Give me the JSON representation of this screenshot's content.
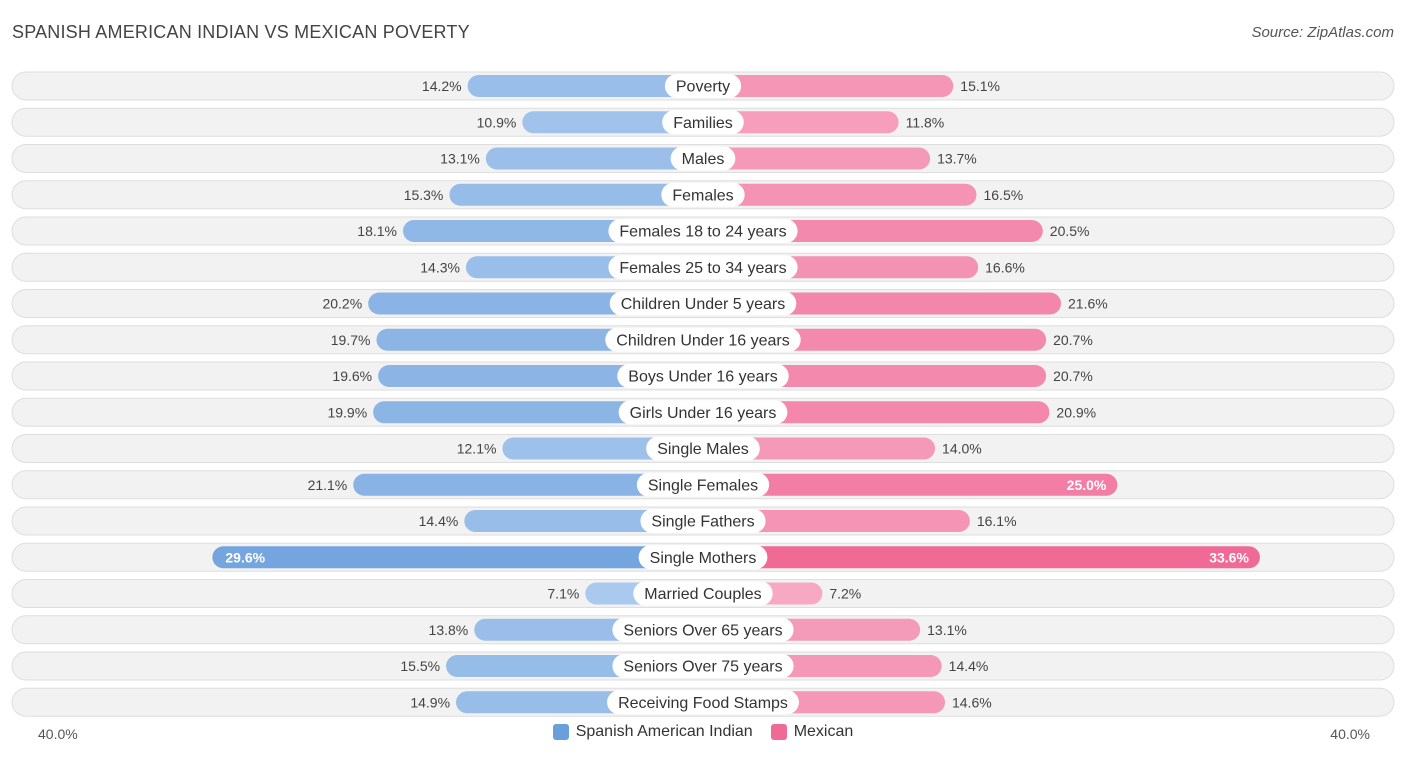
{
  "header": {
    "title": "SPANISH AMERICAN INDIAN VS MEXICAN POVERTY",
    "source": "Source: ZipAtlas.com"
  },
  "colors": {
    "left": "#6a9fdb",
    "left_light": "#aac9ee",
    "right": "#f06a96",
    "right_light": "#f7a9c4"
  },
  "chart_data": {
    "type": "bar",
    "orientation": "horizontal-diverging",
    "xlim": [
      0,
      40
    ],
    "axis_left_label": "40.0%",
    "axis_right_label": "40.0%",
    "legend": [
      {
        "name": "Spanish American Indian",
        "color": "#6a9fdb"
      },
      {
        "name": "Mexican",
        "color": "#f06a96"
      }
    ],
    "categories": [
      "Poverty",
      "Families",
      "Males",
      "Females",
      "Females 18 to 24 years",
      "Females 25 to 34 years",
      "Children Under 5 years",
      "Children Under 16 years",
      "Boys Under 16 years",
      "Girls Under 16 years",
      "Single Males",
      "Single Females",
      "Single Fathers",
      "Single Mothers",
      "Married Couples",
      "Seniors Over 65 years",
      "Seniors Over 75 years",
      "Receiving Food Stamps"
    ],
    "series": [
      {
        "name": "Spanish American Indian",
        "values": [
          14.2,
          10.9,
          13.1,
          15.3,
          18.1,
          14.3,
          20.2,
          19.7,
          19.6,
          19.9,
          12.1,
          21.1,
          14.4,
          29.6,
          7.1,
          13.8,
          15.5,
          14.9
        ],
        "labels": [
          "14.2%",
          "10.9%",
          "13.1%",
          "15.3%",
          "18.1%",
          "14.3%",
          "20.2%",
          "19.7%",
          "19.6%",
          "19.9%",
          "12.1%",
          "21.1%",
          "14.4%",
          "29.6%",
          "7.1%",
          "13.8%",
          "15.5%",
          "14.9%"
        ]
      },
      {
        "name": "Mexican",
        "values": [
          15.1,
          11.8,
          13.7,
          16.5,
          20.5,
          16.6,
          21.6,
          20.7,
          20.7,
          20.9,
          14.0,
          25.0,
          16.1,
          33.6,
          7.2,
          13.1,
          14.4,
          14.6
        ],
        "labels": [
          "15.1%",
          "11.8%",
          "13.7%",
          "16.5%",
          "20.5%",
          "16.6%",
          "21.6%",
          "20.7%",
          "20.7%",
          "20.9%",
          "14.0%",
          "25.0%",
          "16.1%",
          "33.6%",
          "7.2%",
          "13.1%",
          "14.4%",
          "14.6%"
        ]
      }
    ]
  }
}
